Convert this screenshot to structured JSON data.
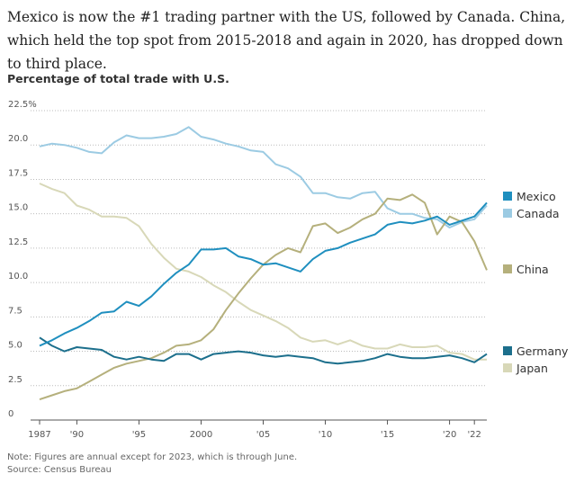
{
  "intro_text": "Mexico is now the #1 trading partner with the US, followed by Canada. China, which held the top spot from 2015-2018 and again in 2020, has dropped down to third place.",
  "note": "Note: Figures are annual except for 2023, which is through June.",
  "source": "Source: Census Bureau",
  "chart_data": {
    "type": "line",
    "title": "Percentage of total trade with U.S.",
    "xlabel": "",
    "ylabel": "",
    "x": [
      1987,
      1988,
      1989,
      1990,
      1991,
      1992,
      1993,
      1994,
      1995,
      1996,
      1997,
      1998,
      1999,
      2000,
      2001,
      2002,
      2003,
      2004,
      2005,
      2006,
      2007,
      2008,
      2009,
      2010,
      2011,
      2012,
      2013,
      2014,
      2015,
      2016,
      2017,
      2018,
      2019,
      2020,
      2021,
      2022,
      2023
    ],
    "xlim": [
      1987,
      2023
    ],
    "ylim": [
      0,
      22.5
    ],
    "y_ticks": [
      0,
      2.5,
      5.0,
      7.5,
      10.0,
      12.5,
      15.0,
      17.5,
      20.0,
      22.5
    ],
    "y_tick_labels": [
      "0",
      "2.5",
      "5.0",
      "7.5",
      "10.0",
      "12.5",
      "15.0",
      "17.5",
      "20.0",
      "22.5%"
    ],
    "x_ticks": [
      1987,
      1990,
      1995,
      2000,
      2005,
      2010,
      2015,
      2020
    ],
    "x_tick_labels": [
      "1987",
      "'90",
      "'95",
      "2000",
      "'05",
      "'10",
      "'15",
      "'20"
    ],
    "extra_x_ticks": [
      2022
    ],
    "extra_x_tick_labels": [
      "'22"
    ],
    "grid": "horizontal dotted",
    "legend": "right, labels at line ends",
    "series": [
      {
        "name": "Mexico",
        "color": "#1f8fbf",
        "values": [
          5.4,
          5.8,
          6.3,
          6.7,
          7.2,
          7.8,
          7.9,
          8.6,
          8.3,
          9.0,
          9.9,
          10.7,
          11.3,
          12.4,
          12.4,
          12.5,
          11.9,
          11.7,
          11.3,
          11.4,
          11.1,
          10.8,
          11.7,
          12.3,
          12.5,
          12.9,
          13.2,
          13.5,
          14.2,
          14.4,
          14.3,
          14.5,
          14.8,
          14.2,
          14.5,
          14.8,
          15.8
        ]
      },
      {
        "name": "Canada",
        "color": "#9ccbe3",
        "values": [
          19.9,
          20.1,
          20.0,
          19.8,
          19.5,
          19.4,
          20.2,
          20.7,
          20.5,
          20.5,
          20.6,
          20.8,
          21.3,
          20.6,
          20.4,
          20.1,
          19.9,
          19.6,
          19.5,
          18.6,
          18.3,
          17.7,
          16.5,
          16.5,
          16.2,
          16.1,
          16.5,
          16.6,
          15.4,
          15.0,
          15.0,
          14.7,
          14.6,
          14.0,
          14.4,
          14.6,
          15.6
        ]
      },
      {
        "name": "China",
        "color": "#b5b07c",
        "values": [
          1.5,
          1.8,
          2.1,
          2.3,
          2.8,
          3.3,
          3.8,
          4.1,
          4.3,
          4.5,
          4.9,
          5.4,
          5.5,
          5.8,
          6.6,
          8.0,
          9.2,
          10.3,
          11.3,
          12.0,
          12.5,
          12.2,
          14.1,
          14.3,
          13.6,
          14.0,
          14.6,
          15.0,
          16.1,
          16.0,
          16.4,
          15.8,
          13.5,
          14.8,
          14.4,
          13.0,
          10.9
        ]
      },
      {
        "name": "Germany",
        "color": "#1c6f8c",
        "values": [
          6.0,
          5.4,
          5.0,
          5.3,
          5.2,
          5.1,
          4.6,
          4.4,
          4.6,
          4.4,
          4.3,
          4.8,
          4.8,
          4.4,
          4.8,
          4.9,
          5.0,
          4.9,
          4.7,
          4.6,
          4.7,
          4.6,
          4.5,
          4.2,
          4.1,
          4.2,
          4.3,
          4.5,
          4.8,
          4.6,
          4.5,
          4.5,
          4.6,
          4.7,
          4.5,
          4.2,
          4.8
        ]
      },
      {
        "name": "Japan",
        "color": "#d8d8b8",
        "values": [
          17.2,
          16.8,
          16.5,
          15.6,
          15.3,
          14.8,
          14.8,
          14.7,
          14.1,
          12.8,
          11.8,
          11.0,
          10.8,
          10.4,
          9.8,
          9.3,
          8.6,
          8.0,
          7.6,
          7.2,
          6.7,
          6.0,
          5.7,
          5.8,
          5.5,
          5.8,
          5.4,
          5.2,
          5.2,
          5.5,
          5.3,
          5.3,
          5.4,
          4.9,
          4.8,
          4.4,
          4.4
        ]
      }
    ]
  }
}
